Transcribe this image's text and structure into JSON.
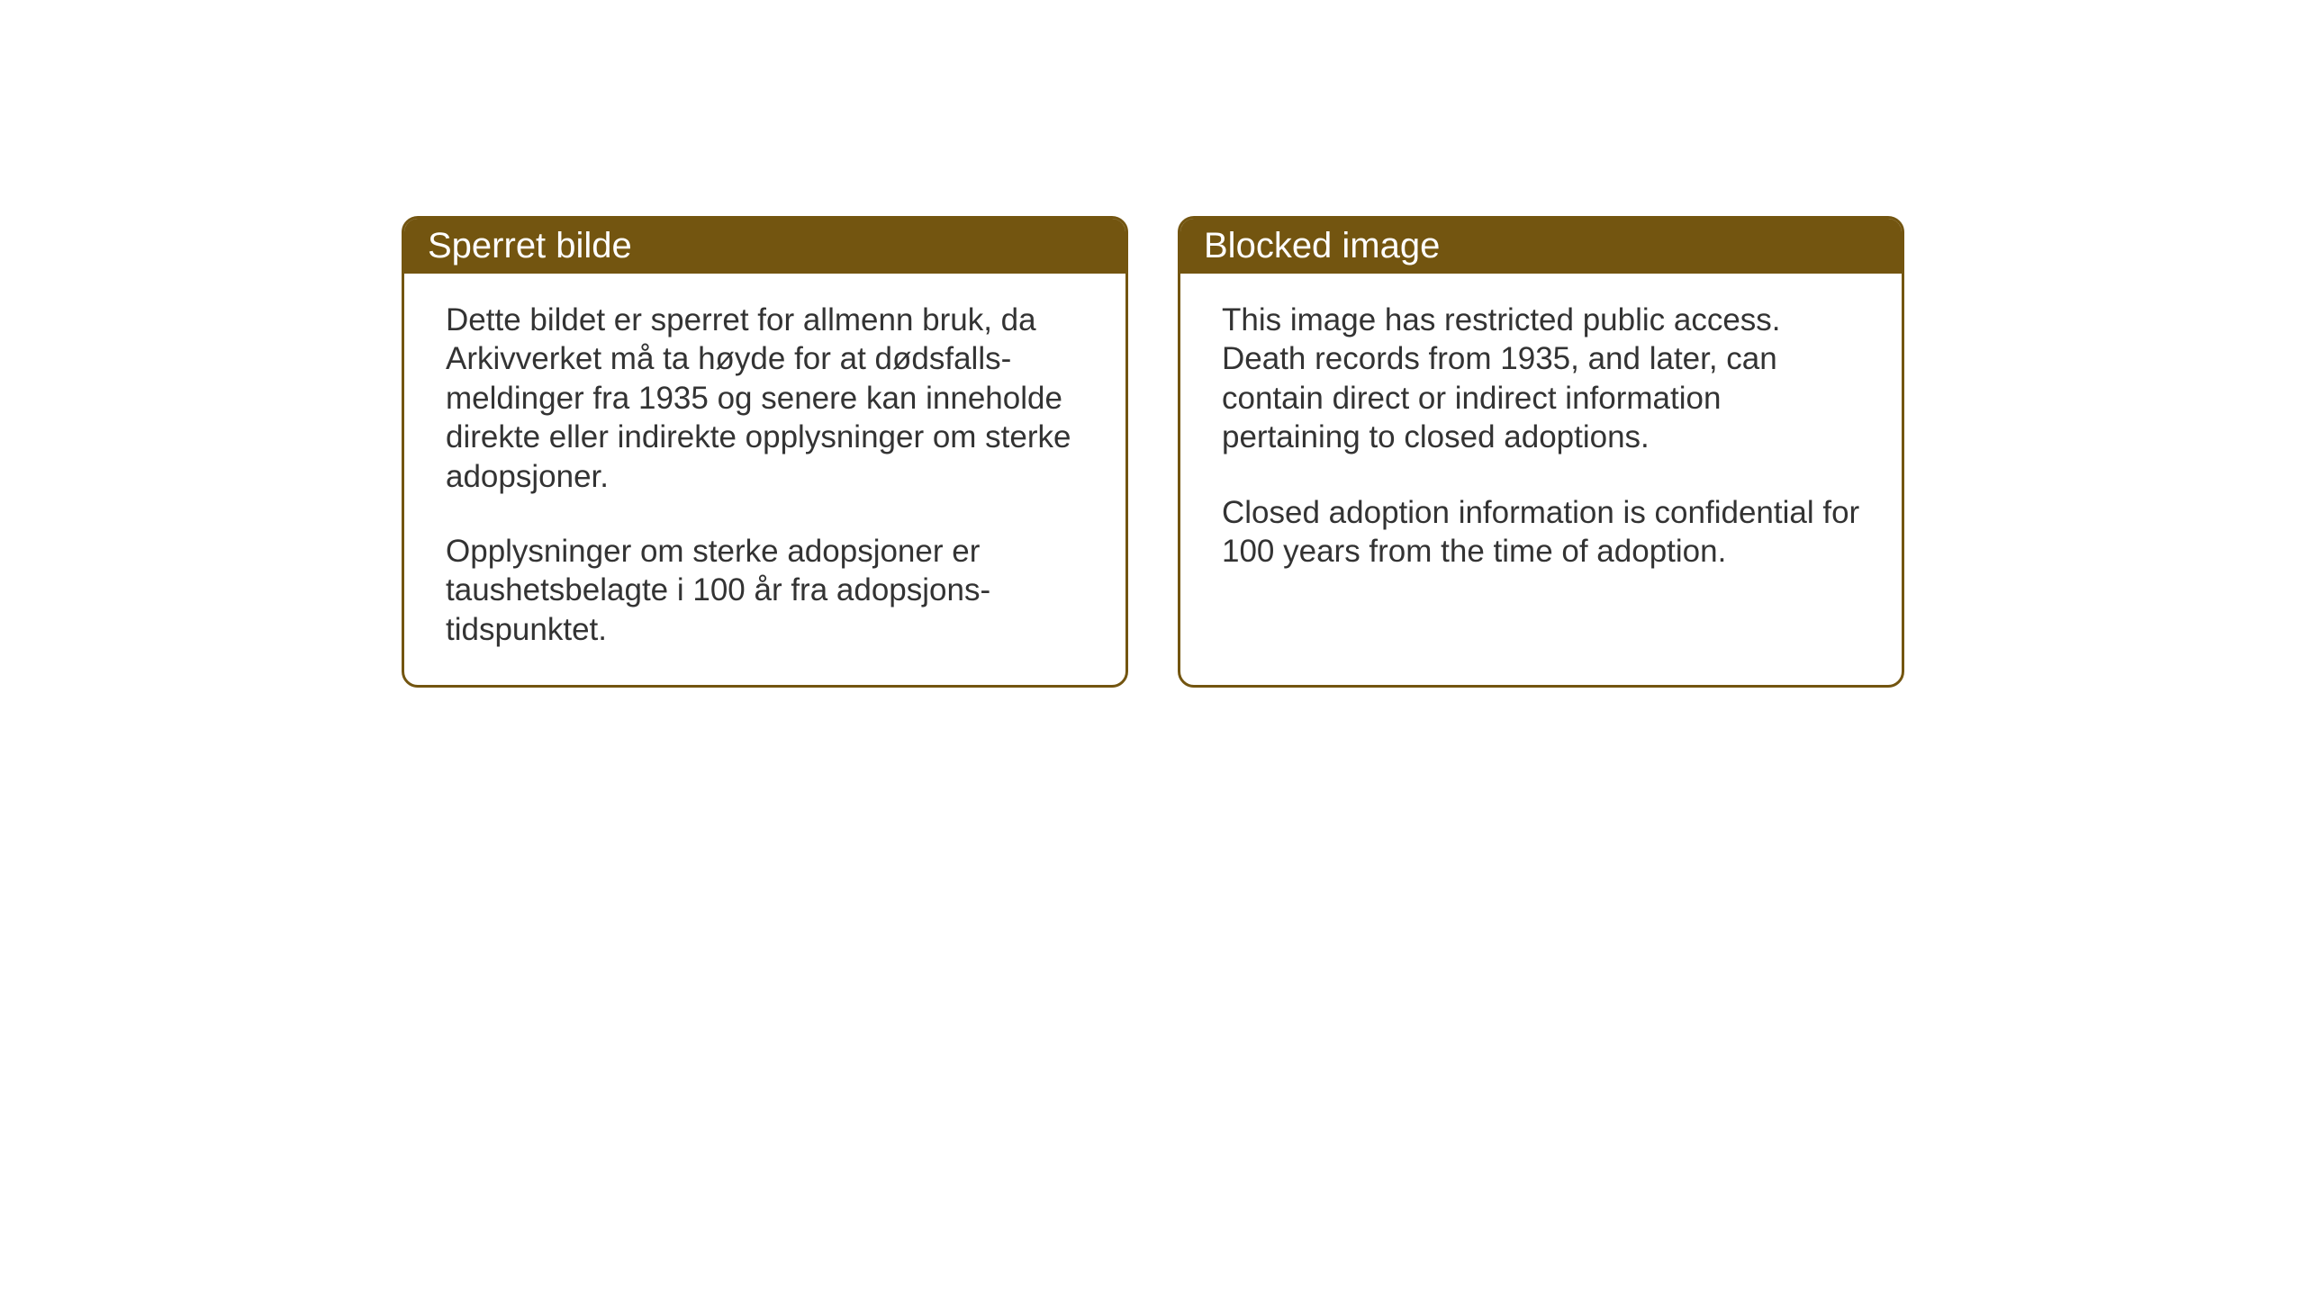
{
  "cards": {
    "norwegian": {
      "title": "Sperret bilde",
      "paragraph1": "Dette bildet er sperret for allmenn bruk, da Arkivverket må ta høyde for at dødsfalls-meldinger fra 1935 og senere kan inneholde direkte eller indirekte opplysninger om sterke adopsjoner.",
      "paragraph2": "Opplysninger om sterke adopsjoner er taushetsbelagte i 100 år fra adopsjons-tidspunktet."
    },
    "english": {
      "title": "Blocked image",
      "paragraph1": "This image has restricted public access. Death records from 1935, and later, can contain direct or indirect information pertaining to closed adoptions.",
      "paragraph2": "Closed adoption information is confidential for 100 years from the time of adoption."
    }
  },
  "styling": {
    "header_background_color": "#735510",
    "header_text_color": "#ffffff",
    "border_color": "#735510",
    "body_text_color": "#333333",
    "page_background_color": "#ffffff",
    "card_background_color": "#ffffff",
    "title_fontsize": 40,
    "body_fontsize": 35,
    "border_radius": 18,
    "border_width": 3
  }
}
